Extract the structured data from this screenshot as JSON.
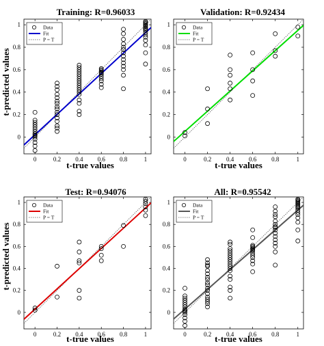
{
  "chart_data": [
    {
      "type": "scatter",
      "title": "Training: R=0.96033",
      "xlabel": "t-true values",
      "ylabel": "t-predicted values",
      "xlim": [
        -0.1,
        1.05
      ],
      "ylim": [
        -0.15,
        1.05
      ],
      "xticks": [
        "0",
        "0.2",
        "0.4",
        "0.6",
        "0.8",
        "1"
      ],
      "yticks": [
        "0",
        "0.2",
        "0.4",
        "0.6",
        "0.8",
        "1"
      ],
      "fit_color": "#0000cc",
      "legend": {
        "position": "top-left",
        "entries": [
          "Data",
          "Fit",
          "P = T"
        ]
      },
      "fit_line": {
        "slope": 0.91,
        "intercept": 0.02
      },
      "identity_line": {
        "slope": 1,
        "intercept": 0
      },
      "x": [
        0,
        0,
        0,
        0,
        0,
        0,
        0,
        0,
        0,
        0,
        0,
        0,
        0,
        0,
        0,
        0.2,
        0.2,
        0.2,
        0.2,
        0.2,
        0.2,
        0.2,
        0.2,
        0.2,
        0.2,
        0.2,
        0.2,
        0.2,
        0.2,
        0.2,
        0.2,
        0.4,
        0.4,
        0.4,
        0.4,
        0.4,
        0.4,
        0.4,
        0.4,
        0.4,
        0.4,
        0.4,
        0.4,
        0.4,
        0.4,
        0.4,
        0.4,
        0.4,
        0.4,
        0.6,
        0.6,
        0.6,
        0.6,
        0.6,
        0.6,
        0.6,
        0.6,
        0.6,
        0.6,
        0.6,
        0.8,
        0.8,
        0.8,
        0.8,
        0.8,
        0.8,
        0.8,
        0.8,
        0.8,
        0.8,
        0.8,
        0.8,
        0.8,
        0.8,
        1,
        1,
        1,
        1,
        1,
        1,
        1,
        1,
        1,
        1,
        1,
        1,
        1,
        1,
        1,
        1
      ],
      "y": [
        -0.12,
        -0.08,
        -0.05,
        -0.02,
        0,
        0.01,
        0.02,
        0.03,
        0.05,
        0.07,
        0.09,
        0.11,
        0.13,
        0.15,
        0.22,
        0.05,
        0.08,
        0.1,
        0.14,
        0.17,
        0.2,
        0.22,
        0.25,
        0.27,
        0.3,
        0.32,
        0.35,
        0.38,
        0.42,
        0.45,
        0.48,
        0.2,
        0.23,
        0.3,
        0.33,
        0.38,
        0.4,
        0.42,
        0.44,
        0.46,
        0.48,
        0.5,
        0.52,
        0.54,
        0.56,
        0.58,
        0.6,
        0.62,
        0.64,
        0.44,
        0.47,
        0.5,
        0.52,
        0.54,
        0.56,
        0.57,
        0.58,
        0.59,
        0.6,
        0.61,
        0.43,
        0.55,
        0.6,
        0.63,
        0.66,
        0.69,
        0.72,
        0.75,
        0.78,
        0.8,
        0.83,
        0.87,
        0.92,
        0.96,
        0.65,
        0.75,
        0.82,
        0.86,
        0.89,
        0.91,
        0.93,
        0.95,
        0.96,
        0.97,
        0.98,
        0.99,
        1.0,
        1.01,
        1.02,
        1.03
      ]
    },
    {
      "type": "scatter",
      "title": "Validation: R=0.92434",
      "xlabel": "t-true values",
      "ylabel": "",
      "xlim": [
        -0.1,
        1.05
      ],
      "ylim": [
        -0.15,
        1.05
      ],
      "xticks": [
        "0",
        "0.2",
        "0.4",
        "0.6",
        "0.8",
        "1"
      ],
      "yticks": [
        "0",
        "0.2",
        "0.4",
        "0.6",
        "0.8",
        "1"
      ],
      "fit_color": "#00dd00",
      "legend": {
        "position": "top-left",
        "entries": [
          "Data",
          "Fit",
          "P = T"
        ]
      },
      "fit_line": {
        "slope": 0.9,
        "intercept": 0.05
      },
      "identity_line": {
        "slope": 1,
        "intercept": 0
      },
      "x": [
        0,
        0,
        0.2,
        0.2,
        0.2,
        0.4,
        0.4,
        0.4,
        0.4,
        0.4,
        0.4,
        0.6,
        0.6,
        0.6,
        0.6,
        0.8,
        0.8,
        0.8,
        1,
        1
      ],
      "y": [
        0.01,
        0.04,
        0.12,
        0.25,
        0.43,
        0.33,
        0.43,
        0.48,
        0.55,
        0.6,
        0.73,
        0.37,
        0.5,
        0.6,
        0.75,
        0.72,
        0.77,
        0.92,
        0.9,
        0.98
      ]
    },
    {
      "type": "scatter",
      "title": "Test: R=0.94076",
      "xlabel": "t-true values",
      "ylabel": "t-predicted values",
      "xlim": [
        -0.1,
        1.05
      ],
      "ylim": [
        -0.15,
        1.05
      ],
      "xticks": [
        "0",
        "0.2",
        "0.4",
        "0.6",
        "0.8",
        "1"
      ],
      "yticks": [
        "0",
        "0.2",
        "0.4",
        "0.6",
        "0.8",
        "1"
      ],
      "fit_color": "#dd0000",
      "legend": {
        "position": "top-left",
        "entries": [
          "Data",
          "Fit",
          "P = T"
        ]
      },
      "fit_line": {
        "slope": 0.92,
        "intercept": 0.03
      },
      "identity_line": {
        "slope": 1,
        "intercept": 0
      },
      "x": [
        0,
        0,
        0.2,
        0.2,
        0.4,
        0.4,
        0.4,
        0.4,
        0.4,
        0.4,
        0.6,
        0.6,
        0.6,
        0.6,
        0.8,
        0.8,
        1,
        1,
        1,
        1,
        1,
        1
      ],
      "y": [
        0.02,
        0.04,
        0.14,
        0.42,
        0.13,
        0.2,
        0.45,
        0.47,
        0.55,
        0.64,
        0.47,
        0.52,
        0.58,
        0.6,
        0.6,
        0.79,
        0.88,
        0.93,
        0.96,
        0.99,
        1.01,
        1.03
      ]
    },
    {
      "type": "scatter",
      "title": "All: R=0.95542",
      "xlabel": "t-true values",
      "ylabel": "",
      "xlim": [
        -0.1,
        1.05
      ],
      "ylim": [
        -0.15,
        1.05
      ],
      "xticks": [
        "0",
        "0.2",
        "0.4",
        "0.6",
        "0.8",
        "1"
      ],
      "yticks": [
        "0",
        "0.2",
        "0.4",
        "0.6",
        "0.8",
        "1"
      ],
      "fit_color": "#555555",
      "legend": {
        "position": "top-left",
        "entries": [
          "Data",
          "Fit",
          "P = T"
        ]
      },
      "fit_line": {
        "slope": 0.9,
        "intercept": 0.03
      },
      "identity_line": {
        "slope": 1,
        "intercept": 0
      },
      "x": [
        0,
        0,
        0,
        0,
        0,
        0,
        0,
        0,
        0,
        0,
        0,
        0,
        0,
        0,
        0,
        0.2,
        0.2,
        0.2,
        0.2,
        0.2,
        0.2,
        0.2,
        0.2,
        0.2,
        0.2,
        0.2,
        0.2,
        0.2,
        0.2,
        0.2,
        0.2,
        0.2,
        0.2,
        0.4,
        0.4,
        0.4,
        0.4,
        0.4,
        0.4,
        0.4,
        0.4,
        0.4,
        0.4,
        0.4,
        0.4,
        0.4,
        0.4,
        0.4,
        0.4,
        0.4,
        0.4,
        0.6,
        0.6,
        0.6,
        0.6,
        0.6,
        0.6,
        0.6,
        0.6,
        0.6,
        0.6,
        0.6,
        0.6,
        0.6,
        0.6,
        0.8,
        0.8,
        0.8,
        0.8,
        0.8,
        0.8,
        0.8,
        0.8,
        0.8,
        0.8,
        0.8,
        0.8,
        0.8,
        0.8,
        0.8,
        0.8,
        1,
        1,
        1,
        1,
        1,
        1,
        1,
        1,
        1,
        1,
        1,
        1,
        1,
        1,
        1,
        1
      ],
      "y": [
        -0.12,
        -0.08,
        -0.05,
        -0.02,
        0,
        0.01,
        0.02,
        0.03,
        0.05,
        0.07,
        0.09,
        0.11,
        0.13,
        0.15,
        0.22,
        0.05,
        0.08,
        0.1,
        0.12,
        0.14,
        0.17,
        0.2,
        0.22,
        0.25,
        0.27,
        0.3,
        0.32,
        0.35,
        0.38,
        0.42,
        0.43,
        0.45,
        0.48,
        0.13,
        0.2,
        0.23,
        0.3,
        0.33,
        0.38,
        0.4,
        0.42,
        0.44,
        0.46,
        0.48,
        0.5,
        0.52,
        0.54,
        0.56,
        0.58,
        0.62,
        0.64,
        0.37,
        0.44,
        0.47,
        0.5,
        0.52,
        0.54,
        0.56,
        0.57,
        0.58,
        0.59,
        0.6,
        0.61,
        0.68,
        0.75,
        0.43,
        0.55,
        0.6,
        0.63,
        0.66,
        0.69,
        0.72,
        0.75,
        0.77,
        0.78,
        0.8,
        0.83,
        0.87,
        0.89,
        0.92,
        0.96,
        0.65,
        0.75,
        0.82,
        0.86,
        0.89,
        0.91,
        0.93,
        0.95,
        0.96,
        0.97,
        0.98,
        0.99,
        1.0,
        1.01,
        1.02,
        1.03
      ]
    }
  ]
}
